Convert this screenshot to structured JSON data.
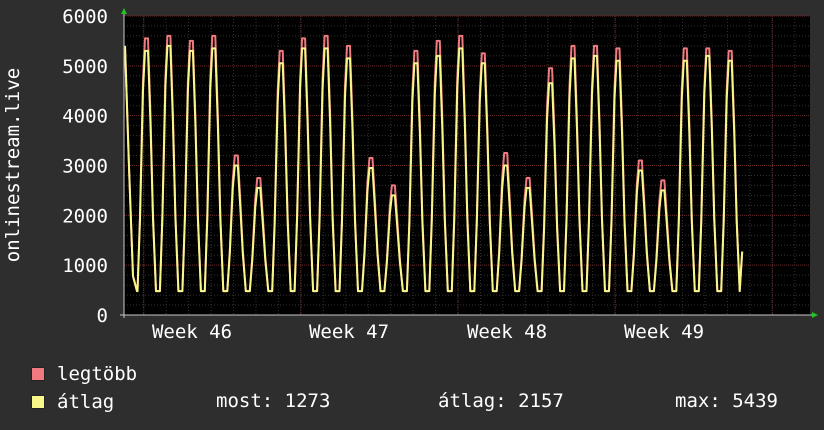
{
  "chart_data": {
    "type": "line",
    "ylabel": "onlinestream.live",
    "ylim": [
      0,
      6000
    ],
    "yticks": [
      0,
      1000,
      2000,
      3000,
      4000,
      5000,
      6000
    ],
    "xtick_labels": [
      "Week 46",
      "Week 47",
      "Week 48",
      "Week 49"
    ],
    "grid": true,
    "daily_peaks_max": [
      5550,
      5600,
      5500,
      5600,
      3200,
      2750,
      5300,
      5550,
      5600,
      5400,
      3150,
      2600,
      5300,
      5500,
      5600,
      5250,
      3250,
      2750,
      4950,
      5400,
      5400,
      5350,
      3100,
      2700,
      5350,
      5350,
      5300
    ],
    "daily_peaks_avg": [
      5300,
      5400,
      5300,
      5350,
      3000,
      2550,
      5050,
      5350,
      5350,
      5150,
      2950,
      2400,
      5050,
      5200,
      5350,
      5050,
      3000,
      2550,
      4650,
      5150,
      5200,
      5100,
      2900,
      2500,
      5100,
      5200,
      5100
    ],
    "series": [
      {
        "name": "legtöbb",
        "color": "#f07a80"
      },
      {
        "name": "átlag",
        "color": "#f8f88a"
      }
    ],
    "start_value": 5400,
    "end_value": 1273,
    "trough_value": 480
  },
  "legend": {
    "max_label": "legtöbb",
    "avg_label": "átlag",
    "max_color": "#f07a80",
    "avg_color": "#f8f88a"
  },
  "stats": {
    "now": "most: 1273",
    "avg": "átlag: 2157",
    "max": "max: 5439"
  }
}
